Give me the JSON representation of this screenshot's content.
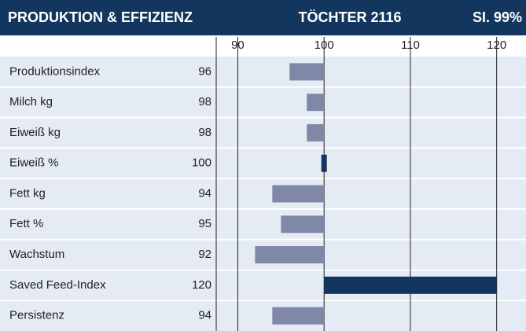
{
  "chart_data": {
    "type": "bar",
    "title": "PRODUKTION & EFFIZIENZ",
    "subtitle": "TÖCHTER 2116",
    "reliability": "SI. 99%",
    "categories": [
      "Produktionsindex",
      "Milch kg",
      "Eiweiß kg",
      "Eiweiß %",
      "Fett kg",
      "Fett %",
      "Wachstum",
      "Saved Feed-Index",
      "Persistenz"
    ],
    "values": [
      96,
      98,
      98,
      100,
      94,
      95,
      92,
      120,
      94
    ],
    "colors": [
      "#8088a8",
      "#8088a8",
      "#8088a8",
      "#13365e",
      "#8088a8",
      "#8088a8",
      "#8088a8",
      "#13365e",
      "#8088a8"
    ],
    "baseline": 100,
    "xlim": [
      87.5,
      123.4
    ],
    "xticks": [
      90,
      100,
      110,
      120
    ],
    "grid": true
  }
}
